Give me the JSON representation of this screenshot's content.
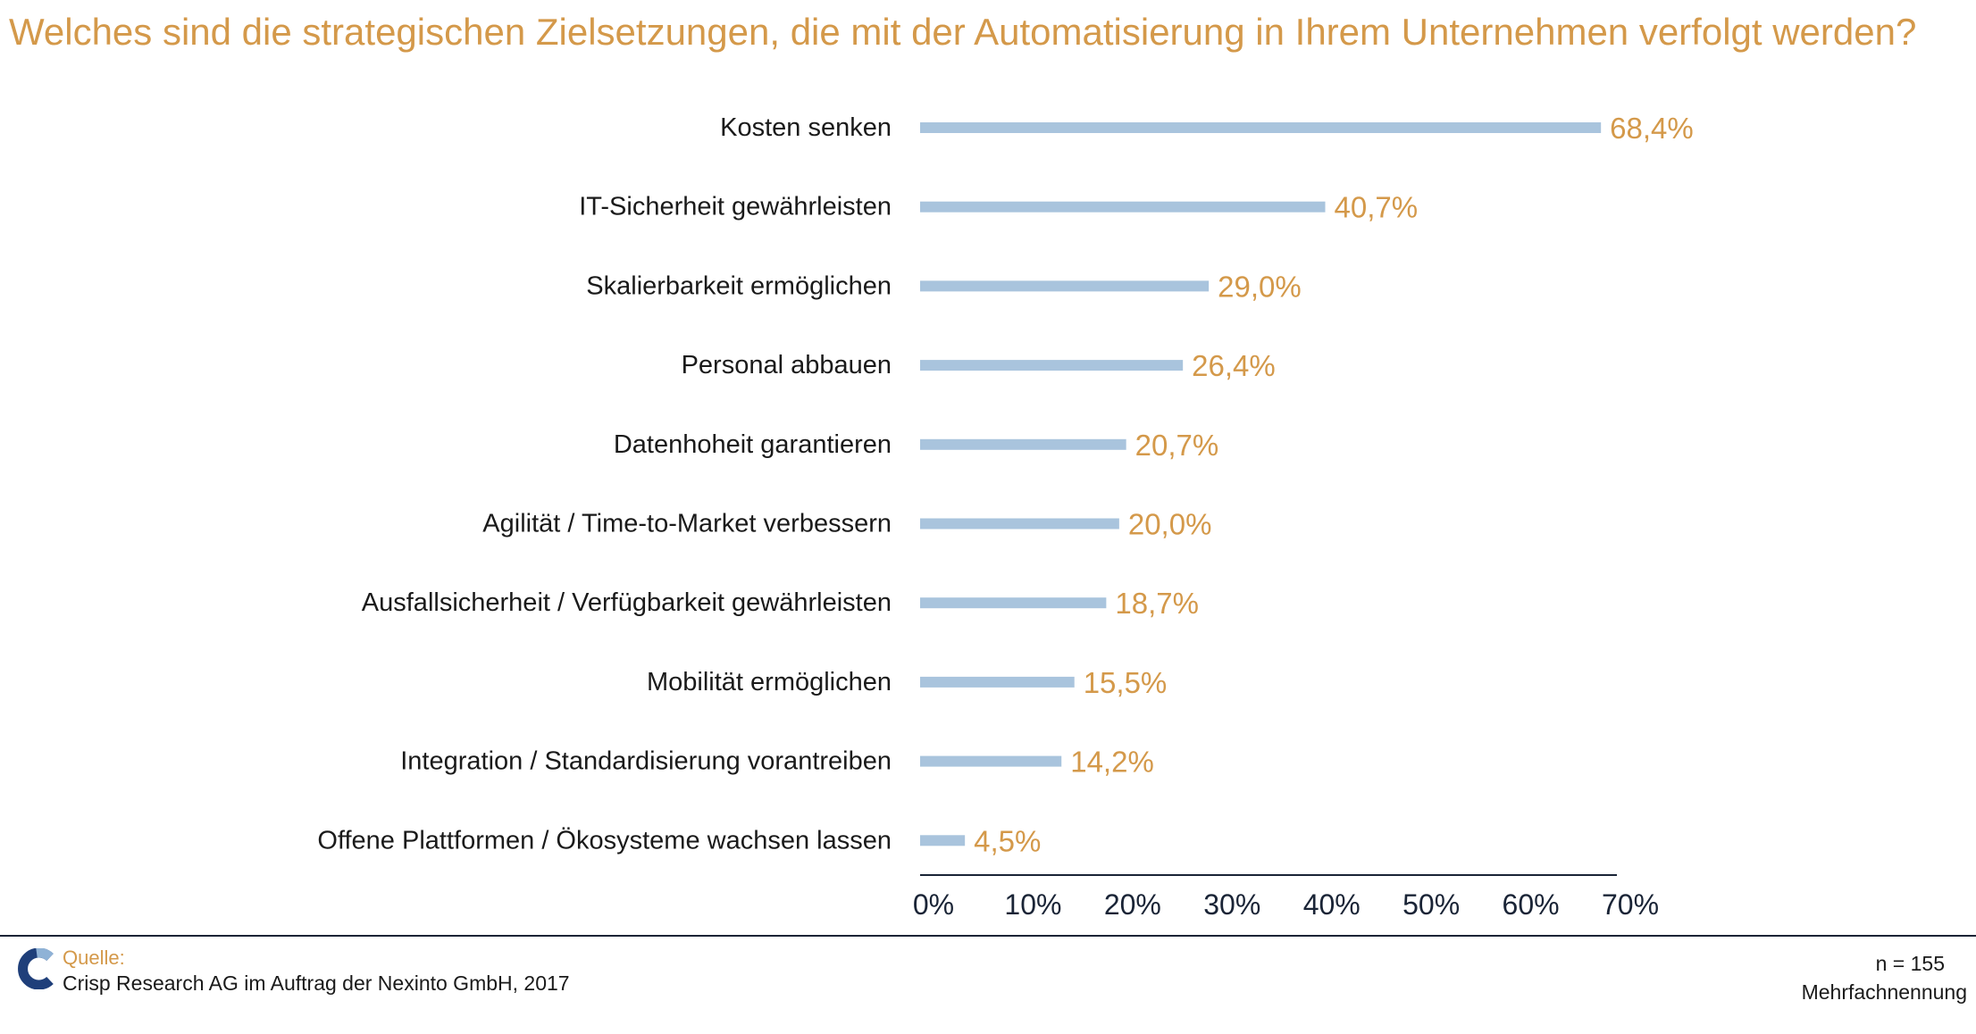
{
  "title": "Welches sind die strategischen Zielsetzungen, die mit der Automatisierung in Ihrem Unternehmen verfolgt werden?",
  "chart_data": {
    "type": "bar",
    "orientation": "horizontal",
    "categories": [
      "Kosten senken",
      "IT-Sicherheit gewährleisten",
      "Skalierbarkeit ermöglichen",
      "Personal abbauen",
      "Datenhoheit garantieren",
      "Agilität / Time-to-Market verbessern",
      "Ausfallsicherheit / Verfügbarkeit gewährleisten",
      "Mobilität ermöglichen",
      "Integration / Standardisierung vorantreiben",
      "Offene Plattformen / Ökosysteme wachsen lassen"
    ],
    "values": [
      68.4,
      40.7,
      29.0,
      26.4,
      20.7,
      20.0,
      18.7,
      15.5,
      14.2,
      4.5
    ],
    "value_labels": [
      "68,4%",
      "40,7%",
      "29,0%",
      "26,4%",
      "20,7%",
      "20,0%",
      "18,7%",
      "15,5%",
      "14,2%",
      "4,5%"
    ],
    "xlim": [
      0,
      70
    ],
    "x_ticks": [
      "0%",
      "10%",
      "20%",
      "30%",
      "40%",
      "50%",
      "60%",
      "70%"
    ],
    "grid": false,
    "legend": "none",
    "colors": {
      "bar": "#a9c4dd",
      "value_label": "#d4994a",
      "category_label": "#1a1a1a",
      "axis": "#1a2436"
    }
  },
  "footer": {
    "source_label": "Quelle:",
    "source_text": "Crisp Research AG im Auftrag der Nexinto GmbH, 2017",
    "sample_size": "n = 155",
    "note": "Mehrfachnennung"
  }
}
